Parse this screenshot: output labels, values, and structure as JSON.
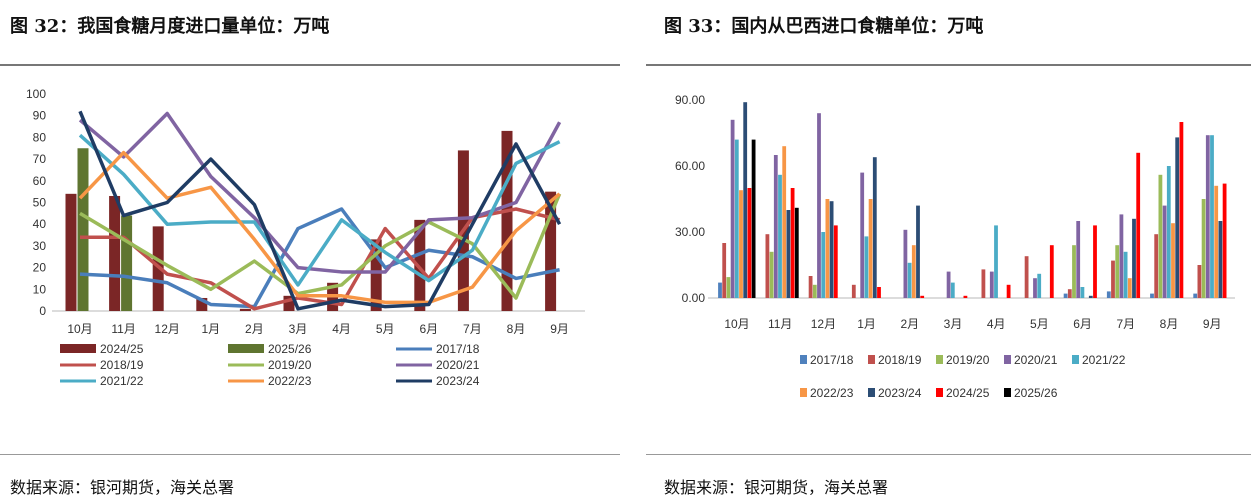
{
  "left": {
    "title": "图 32：我国食糖月度进口量单位：万吨",
    "source": "数据来源：银河期货，海关总署"
  },
  "right": {
    "title": "图 33：国内从巴西进口食糖单位：万吨",
    "source": "数据来源：银河期货，海关总署"
  },
  "chart_data": [
    {
      "type": "bar+line",
      "title": "我国食糖月度进口量单位：万吨",
      "categories": [
        "10月",
        "11月",
        "12月",
        "1月",
        "2月",
        "3月",
        "4月",
        "5月",
        "6月",
        "7月",
        "8月",
        "9月"
      ],
      "ylim": [
        0,
        100
      ],
      "yticks": [
        "0",
        "10",
        "20",
        "30",
        "40",
        "50",
        "60",
        "70",
        "80",
        "90",
        "100"
      ],
      "legend_position": "bottom",
      "bar_series": [
        {
          "name": "2024/25",
          "color": "#7b2626",
          "values": [
            54,
            53,
            39,
            6,
            1,
            7,
            13,
            33,
            42,
            74,
            83,
            55
          ]
        },
        {
          "name": "2025/26",
          "color": "#5f7530",
          "values": [
            75,
            44,
            null,
            null,
            null,
            null,
            null,
            null,
            null,
            null,
            null,
            null
          ]
        }
      ],
      "line_series": [
        {
          "name": "2017/18",
          "color": "#4a7ebb",
          "values": [
            17,
            16,
            13,
            3,
            2,
            38,
            47,
            20,
            28,
            25,
            15,
            19
          ]
        },
        {
          "name": "2018/19",
          "color": "#c0504d",
          "values": [
            34,
            34,
            17,
            13,
            1,
            6,
            3,
            38,
            15,
            43,
            47,
            42
          ]
        },
        {
          "name": "2019/20",
          "color": "#9bbb59",
          "values": [
            45,
            33,
            21,
            10,
            23,
            8,
            12,
            30,
            41,
            31,
            6,
            54
          ]
        },
        {
          "name": "2020/21",
          "color": "#8064a2",
          "values": [
            88,
            71,
            91,
            62,
            43,
            20,
            18,
            18,
            42,
            43,
            50,
            87
          ]
        },
        {
          "name": "2021/22",
          "color": "#4bacc6",
          "values": [
            81,
            63,
            40,
            41,
            41,
            12,
            42,
            27,
            14,
            28,
            68,
            78
          ]
        },
        {
          "name": "2022/23",
          "color": "#f79646",
          "values": [
            52,
            73,
            52,
            57,
            33,
            7,
            7,
            4,
            4,
            11,
            37,
            54
          ]
        },
        {
          "name": "2023/24",
          "color": "#1f3c64",
          "values": [
            92,
            44,
            50,
            70,
            49,
            1,
            5,
            2,
            3,
            40,
            77,
            40
          ]
        }
      ],
      "legend_order": [
        "2024/25",
        "2025/26",
        "2017/18",
        "2018/19",
        "2019/20",
        "2020/21",
        "2021/22",
        "2022/23",
        "2023/24"
      ]
    },
    {
      "type": "bar",
      "title": "国内从巴西进口食糖单位：万吨",
      "categories": [
        "10月",
        "11月",
        "12月",
        "1月",
        "2月",
        "3月",
        "4月",
        "5月",
        "6月",
        "7月",
        "8月",
        "9月"
      ],
      "ylim": [
        0,
        90
      ],
      "yticks": [
        "0.00",
        "30.00",
        "60.00",
        "90.00"
      ],
      "legend_position": "bottom",
      "series": [
        {
          "name": "2017/18",
          "color": "#4f81bd",
          "values": [
            7,
            0,
            0,
            0,
            0,
            0,
            0,
            0,
            2,
            3,
            2,
            2
          ]
        },
        {
          "name": "2018/19",
          "color": "#c0504d",
          "values": [
            25,
            29,
            10,
            6,
            0,
            0,
            13,
            19,
            4,
            17,
            29,
            15
          ]
        },
        {
          "name": "2019/20",
          "color": "#9bbb59",
          "values": [
            9.5,
            21,
            6,
            0,
            0,
            0,
            0,
            0,
            24,
            24,
            56,
            45
          ]
        },
        {
          "name": "2020/21",
          "color": "#8064a2",
          "values": [
            81,
            65,
            84,
            57,
            31,
            12,
            12,
            9,
            35,
            38,
            42,
            74
          ]
        },
        {
          "name": "2021/22",
          "color": "#4bacc6",
          "values": [
            72,
            56,
            30,
            28,
            16,
            7,
            33,
            11,
            5,
            21,
            60,
            74
          ]
        },
        {
          "name": "2022/23",
          "color": "#f79646",
          "values": [
            49,
            69,
            45,
            45,
            24,
            0,
            0,
            0,
            0,
            9,
            34,
            51
          ]
        },
        {
          "name": "2023/24",
          "color": "#2c4d75",
          "values": [
            89,
            40,
            44,
            64,
            42,
            0,
            0,
            0,
            1,
            36,
            73,
            35
          ]
        },
        {
          "name": "2024/25",
          "color": "#ff0000",
          "values": [
            50,
            50,
            33,
            5,
            1,
            1,
            6,
            24,
            33,
            66,
            80,
            52
          ]
        },
        {
          "name": "2025/26",
          "color": "#000000",
          "values": [
            72,
            41,
            0,
            0,
            0,
            0,
            0,
            0,
            0,
            0,
            0,
            0
          ]
        }
      ]
    }
  ]
}
